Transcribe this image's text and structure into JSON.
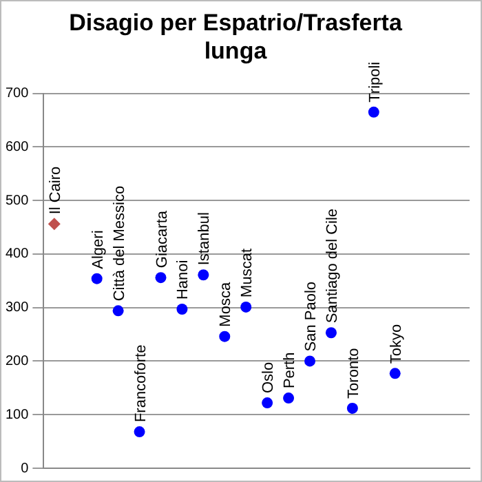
{
  "chart_data": {
    "type": "scatter",
    "title": "Disagio per Espatrio/Trasferta lunga",
    "categories": [
      null,
      null,
      null,
      null,
      null,
      null,
      null,
      null,
      null,
      null,
      null,
      null,
      null,
      null,
      null,
      null,
      null,
      null,
      null,
      null
    ],
    "ylim": [
      0,
      700
    ],
    "yticks": [
      0,
      100,
      200,
      300,
      400,
      500,
      600,
      700
    ],
    "grid": "y",
    "legend": false,
    "tick_labels": "y",
    "series": [
      {
        "name": "Il Cairo",
        "color": "#c0504d",
        "marker": "diamond",
        "values": [
          456,
          null,
          null,
          null,
          null,
          null,
          null,
          null,
          null,
          null,
          null,
          null,
          null,
          null,
          null,
          null,
          null,
          null,
          null,
          null
        ]
      },
      {
        "name": "Algeri",
        "color": "#0000ff",
        "marker": "circle",
        "values": [
          null,
          null,
          354,
          null,
          null,
          null,
          null,
          null,
          null,
          null,
          null,
          null,
          null,
          null,
          null,
          null,
          null,
          null,
          null,
          null
        ]
      },
      {
        "name": "Città del Messico",
        "color": "#0000ff",
        "marker": "circle",
        "values": [
          null,
          null,
          null,
          294,
          null,
          null,
          null,
          null,
          null,
          null,
          null,
          null,
          null,
          null,
          null,
          null,
          null,
          null,
          null,
          null
        ]
      },
      {
        "name": "Francoforte",
        "color": "#0000ff",
        "marker": "circle",
        "values": [
          null,
          null,
          null,
          null,
          68,
          null,
          null,
          null,
          null,
          null,
          null,
          null,
          null,
          null,
          null,
          null,
          null,
          null,
          null,
          null
        ]
      },
      {
        "name": "Giacarta",
        "color": "#0000ff",
        "marker": "circle",
        "values": [
          null,
          null,
          null,
          null,
          null,
          356,
          null,
          null,
          null,
          null,
          null,
          null,
          null,
          null,
          null,
          null,
          null,
          null,
          null,
          null
        ]
      },
      {
        "name": "Hanoi",
        "color": "#0000ff",
        "marker": "circle",
        "values": [
          null,
          null,
          null,
          null,
          null,
          null,
          297,
          null,
          null,
          null,
          null,
          null,
          null,
          null,
          null,
          null,
          null,
          null,
          null,
          null
        ]
      },
      {
        "name": "Istanbul",
        "color": "#0000ff",
        "marker": "circle",
        "values": [
          null,
          null,
          null,
          null,
          null,
          null,
          null,
          361,
          null,
          null,
          null,
          null,
          null,
          null,
          null,
          null,
          null,
          null,
          null,
          null
        ]
      },
      {
        "name": "Mosca",
        "color": "#0000ff",
        "marker": "circle",
        "values": [
          null,
          null,
          null,
          null,
          null,
          null,
          null,
          null,
          246,
          null,
          null,
          null,
          null,
          null,
          null,
          null,
          null,
          null,
          null,
          null
        ]
      },
      {
        "name": "Muscat",
        "color": "#0000ff",
        "marker": "circle",
        "values": [
          null,
          null,
          null,
          null,
          null,
          null,
          null,
          null,
          null,
          301,
          null,
          null,
          null,
          null,
          null,
          null,
          null,
          null,
          null,
          null
        ]
      },
      {
        "name": "Oslo",
        "color": "#0000ff",
        "marker": "circle",
        "values": [
          null,
          null,
          null,
          null,
          null,
          null,
          null,
          null,
          null,
          null,
          122,
          null,
          null,
          null,
          null,
          null,
          null,
          null,
          null,
          null
        ]
      },
      {
        "name": "Perth",
        "color": "#0000ff",
        "marker": "circle",
        "values": [
          null,
          null,
          null,
          null,
          null,
          null,
          null,
          null,
          null,
          null,
          null,
          131,
          null,
          null,
          null,
          null,
          null,
          null,
          null,
          null
        ]
      },
      {
        "name": "San Paolo",
        "color": "#0000ff",
        "marker": "circle",
        "values": [
          null,
          null,
          null,
          null,
          null,
          null,
          null,
          null,
          null,
          null,
          null,
          null,
          200,
          null,
          null,
          null,
          null,
          null,
          null,
          null
        ]
      },
      {
        "name": "Santiago del Cile",
        "color": "#0000ff",
        "marker": "circle",
        "values": [
          null,
          null,
          null,
          null,
          null,
          null,
          null,
          null,
          null,
          null,
          null,
          null,
          null,
          253,
          null,
          null,
          null,
          null,
          null,
          null
        ]
      },
      {
        "name": "Toronto",
        "color": "#0000ff",
        "marker": "circle",
        "values": [
          null,
          null,
          null,
          null,
          null,
          null,
          null,
          null,
          null,
          null,
          null,
          null,
          null,
          null,
          112,
          null,
          null,
          null,
          null,
          null
        ]
      },
      {
        "name": "Tripoli",
        "color": "#0000ff",
        "marker": "circle",
        "values": [
          null,
          null,
          null,
          null,
          null,
          null,
          null,
          null,
          null,
          null,
          null,
          null,
          null,
          null,
          null,
          665,
          null,
          null,
          null,
          null
        ]
      },
      {
        "name": "Tokyo",
        "color": "#0000ff",
        "marker": "circle",
        "values": [
          null,
          null,
          null,
          null,
          null,
          null,
          null,
          null,
          null,
          null,
          null,
          null,
          null,
          null,
          null,
          null,
          177,
          null,
          null,
          null
        ]
      }
    ]
  }
}
